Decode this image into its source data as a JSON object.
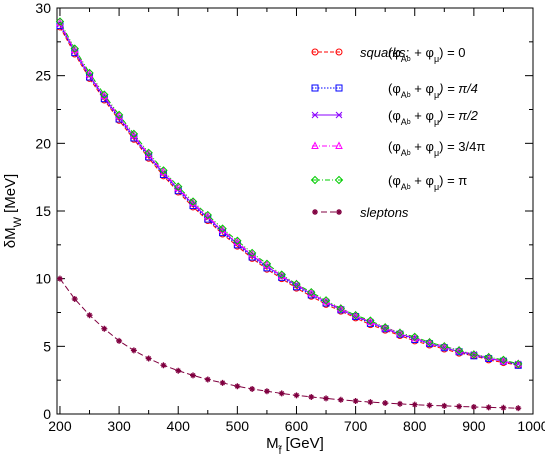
{
  "chart_data": {
    "type": "line",
    "xlabel_main": "M",
    "xlabel_sub": "f̃",
    "xlabel_unit": "[GeV]",
    "ylabel_main": "δM",
    "ylabel_sub": "W",
    "ylabel_unit": "[MeV]",
    "xlim": [
      195,
      1000
    ],
    "ylim": [
      0,
      30
    ],
    "xticks": [
      200,
      300,
      400,
      500,
      600,
      700,
      800,
      900,
      1000
    ],
    "xtick_labels": [
      "200",
      "300",
      "400",
      "500",
      "600",
      "700",
      "800",
      "900",
      "1000"
    ],
    "yticks": [
      0,
      5,
      10,
      15,
      20,
      25,
      30
    ],
    "ytick_labels": [
      "0",
      "5",
      "10",
      "15",
      "20",
      "25",
      "30"
    ],
    "grid": false,
    "legend_placement": "top-right",
    "legend_group_squarks": "squarks:",
    "legend_group_sleptons": "sleptons",
    "series": [
      {
        "name": "(φAb + φμ) = 0",
        "legend_lhs": "(φ",
        "legend_sub": "A",
        "legend_subsub": "b",
        "legend_mid": " + φ",
        "legend_sub2": "μ",
        "legend_rhs": ") = 0",
        "color": "#ff0000",
        "marker": "circle",
        "dash": "4,2",
        "x": [
          200,
          225,
          250,
          275,
          300,
          325,
          350,
          375,
          400,
          425,
          450,
          475,
          500,
          525,
          550,
          575,
          600,
          625,
          650,
          675,
          700,
          725,
          750,
          775,
          800,
          825,
          850,
          875,
          900,
          925,
          950,
          975
        ],
        "y": [
          28.6,
          26.6,
          24.8,
          23.2,
          21.7,
          20.3,
          18.9,
          17.6,
          16.4,
          15.3,
          14.3,
          13.3,
          12.4,
          11.5,
          10.7,
          10.0,
          9.3,
          8.7,
          8.1,
          7.6,
          7.1,
          6.6,
          6.2,
          5.8,
          5.4,
          5.1,
          4.8,
          4.5,
          4.3,
          4.0,
          3.8,
          3.6
        ]
      },
      {
        "name": "(φAb + φμ) = π/4",
        "legend_lhs": "(φ",
        "legend_sub": "A",
        "legend_subsub": "b",
        "legend_mid": " + φ",
        "legend_sub2": "μ",
        "legend_rhs": ") = π/4",
        "color": "#0000ff",
        "marker": "square",
        "dash": "1.5,1.5",
        "x": [
          200,
          225,
          250,
          275,
          300,
          325,
          350,
          375,
          400,
          425,
          450,
          475,
          500,
          525,
          550,
          575,
          600,
          625,
          650,
          675,
          700,
          725,
          750,
          775,
          800,
          825,
          850,
          875,
          900,
          925,
          950,
          975
        ],
        "y": [
          28.7,
          26.7,
          24.9,
          23.3,
          21.8,
          20.4,
          19.0,
          17.7,
          16.5,
          15.4,
          14.4,
          13.4,
          12.5,
          11.6,
          10.8,
          10.1,
          9.4,
          8.8,
          8.2,
          7.7,
          7.2,
          6.7,
          6.3,
          5.9,
          5.5,
          5.2,
          4.9,
          4.6,
          4.3,
          4.1,
          3.9,
          3.6
        ]
      },
      {
        "name": "(φAb + φμ) = π/2",
        "legend_lhs": "(φ",
        "legend_sub": "A",
        "legend_subsub": "b",
        "legend_mid": " + φ",
        "legend_sub2": "μ",
        "legend_rhs": ") = π/2",
        "color": "#8b00ff",
        "marker": "x",
        "dash": "",
        "x": [
          200,
          225,
          250,
          275,
          300,
          325,
          350,
          375,
          400,
          425,
          450,
          475,
          500,
          525,
          550,
          575,
          600,
          625,
          650,
          675,
          700,
          725,
          750,
          775,
          800,
          825,
          850,
          875,
          900,
          925,
          950,
          975
        ],
        "y": [
          28.8,
          26.8,
          25.0,
          23.4,
          21.9,
          20.5,
          19.1,
          17.8,
          16.6,
          15.5,
          14.5,
          13.5,
          12.6,
          11.7,
          10.9,
          10.2,
          9.5,
          8.9,
          8.3,
          7.7,
          7.2,
          6.8,
          6.3,
          5.9,
          5.6,
          5.2,
          4.9,
          4.6,
          4.4,
          4.1,
          3.9,
          3.7
        ]
      },
      {
        "name": "(φAb + φμ) = 3/4π",
        "legend_lhs": "(φ",
        "legend_sub": "A",
        "legend_subsub": "b",
        "legend_mid": " + φ",
        "legend_sub2": "μ",
        "legend_rhs": ") = 3/4π",
        "color": "#ff00ff",
        "marker": "triangle",
        "dash": "5,2,1,2",
        "x": [
          200,
          225,
          250,
          275,
          300,
          325,
          350,
          375,
          400,
          425,
          450,
          475,
          500,
          525,
          550,
          575,
          600,
          625,
          650,
          675,
          700,
          725,
          750,
          775,
          800,
          825,
          850,
          875,
          900,
          925,
          950,
          975
        ],
        "y": [
          28.9,
          26.9,
          25.1,
          23.5,
          22.0,
          20.6,
          19.2,
          17.9,
          16.7,
          15.6,
          14.6,
          13.6,
          12.7,
          11.8,
          11.0,
          10.2,
          9.6,
          8.9,
          8.3,
          7.8,
          7.3,
          6.8,
          6.4,
          6.0,
          5.6,
          5.3,
          5.0,
          4.7,
          4.4,
          4.2,
          3.9,
          3.7
        ]
      },
      {
        "name": "(φAb + φμ) = π",
        "legend_lhs": "(φ",
        "legend_sub": "A",
        "legend_subsub": "b",
        "legend_mid": " + φ",
        "legend_sub2": "μ",
        "legend_rhs": ") = π",
        "color": "#00cc00",
        "marker": "diamond",
        "dash": "5,2,1,2,1,2",
        "x": [
          200,
          225,
          250,
          275,
          300,
          325,
          350,
          375,
          400,
          425,
          450,
          475,
          500,
          525,
          550,
          575,
          600,
          625,
          650,
          675,
          700,
          725,
          750,
          775,
          800,
          825,
          850,
          875,
          900,
          925,
          950,
          975
        ],
        "y": [
          29.0,
          27.0,
          25.2,
          23.6,
          22.1,
          20.7,
          19.3,
          18.0,
          16.8,
          15.7,
          14.7,
          13.7,
          12.8,
          11.9,
          11.1,
          10.3,
          9.6,
          9.0,
          8.4,
          7.8,
          7.3,
          6.9,
          6.4,
          6.0,
          5.7,
          5.3,
          5.0,
          4.7,
          4.4,
          4.2,
          4.0,
          3.7
        ]
      },
      {
        "name": "sleptons",
        "color": "#800040",
        "marker": "star",
        "dash": "6,3",
        "x": [
          200,
          225,
          250,
          275,
          300,
          325,
          350,
          375,
          400,
          425,
          450,
          475,
          500,
          525,
          550,
          575,
          600,
          625,
          650,
          675,
          700,
          725,
          750,
          775,
          800,
          825,
          850,
          875,
          900,
          925,
          950,
          975
        ],
        "y": [
          10.0,
          8.5,
          7.3,
          6.3,
          5.4,
          4.7,
          4.1,
          3.6,
          3.2,
          2.85,
          2.55,
          2.3,
          2.05,
          1.85,
          1.68,
          1.52,
          1.38,
          1.26,
          1.15,
          1.05,
          0.96,
          0.88,
          0.81,
          0.75,
          0.69,
          0.64,
          0.6,
          0.56,
          0.52,
          0.49,
          0.46,
          0.43
        ]
      }
    ]
  }
}
